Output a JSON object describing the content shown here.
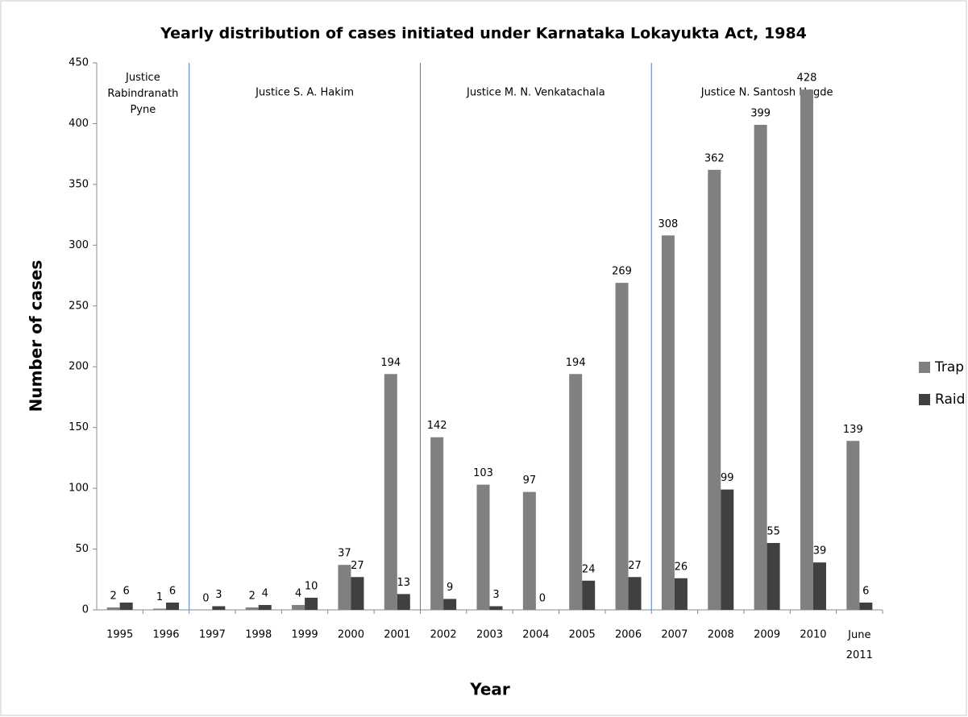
{
  "chart_data": {
    "type": "bar",
    "title": "Yearly distribution  of cases initiated under Karnataka Lokayukta Act, 1984",
    "x_label": "Year",
    "y_label": "Number of cases",
    "categories": [
      "1995",
      "1996",
      "1997",
      "1998",
      "1999",
      "2000",
      "2001",
      "2002",
      "2003",
      "2004",
      "2005",
      "2006",
      "2007",
      "2008",
      "2009",
      "2010",
      "June 2011"
    ],
    "series": [
      {
        "name": "Trap",
        "color": "#808080",
        "values": [
          2,
          1,
          0,
          2,
          4,
          37,
          194,
          142,
          103,
          97,
          194,
          269,
          308,
          362,
          399,
          428,
          139
        ]
      },
      {
        "name": "Raid",
        "color": "#404040",
        "values": [
          6,
          6,
          3,
          4,
          10,
          27,
          13,
          9,
          3,
          0,
          24,
          27,
          26,
          99,
          55,
          39,
          6
        ]
      }
    ],
    "ylim": [
      0,
      450
    ],
    "yticks": [
      0,
      50,
      100,
      150,
      200,
      250,
      300,
      350,
      400,
      450
    ],
    "legend": "right",
    "annotations": [
      {
        "label": "Justice Rabindranath Pyne",
        "from": "1995",
        "to": "1996"
      },
      {
        "label": "Justice S. A. Hakim",
        "from": "1997",
        "to": "2001"
      },
      {
        "label": "Justice M. N. Venkatachala",
        "from": "2002",
        "to": "2006"
      },
      {
        "label": "Justice N. Santosh Hegde",
        "from": "2007",
        "to": "June 2011"
      }
    ]
  }
}
